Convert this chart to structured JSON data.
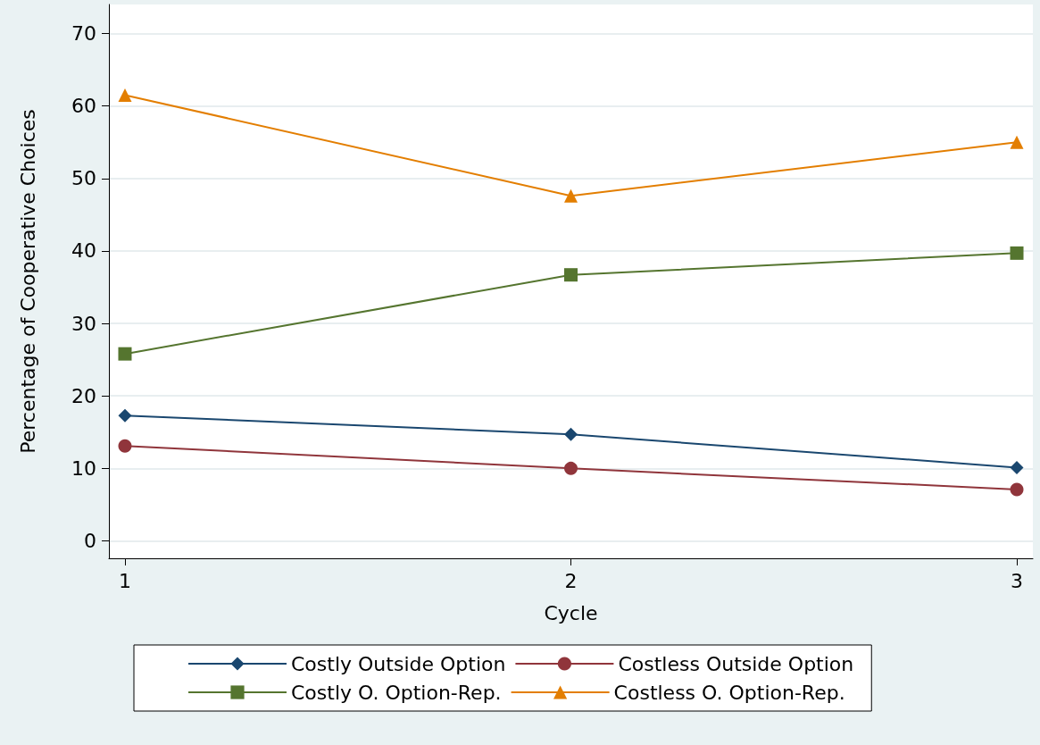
{
  "chart_data": {
    "type": "line",
    "xlabel": "Cycle",
    "ylabel": "Percentage of Cooperative Choices",
    "x": [
      1,
      2,
      3
    ],
    "xlim": [
      0.964,
      3.036
    ],
    "xticks": [
      1,
      2,
      3
    ],
    "ylim": [
      -2.4,
      74
    ],
    "yticks": [
      0,
      10,
      20,
      30,
      40,
      50,
      60,
      70
    ],
    "grid": "y",
    "legend": "bottom",
    "series": [
      {
        "name": "Costly Outside Option",
        "color": "#1a476f",
        "marker": "diamond",
        "values": [
          17.3,
          14.7,
          10.1
        ]
      },
      {
        "name": "Costless Outside Option",
        "color": "#90353b",
        "marker": "circle",
        "values": [
          13.1,
          10.0,
          7.1
        ]
      },
      {
        "name": "Costly O. Option-Rep.",
        "color": "#55752f",
        "marker": "square",
        "values": [
          25.8,
          36.7,
          39.7
        ]
      },
      {
        "name": "Costless O. Option-Rep.",
        "color": "#e37e00",
        "marker": "triangle",
        "values": [
          61.5,
          47.6,
          55.0
        ]
      }
    ]
  }
}
